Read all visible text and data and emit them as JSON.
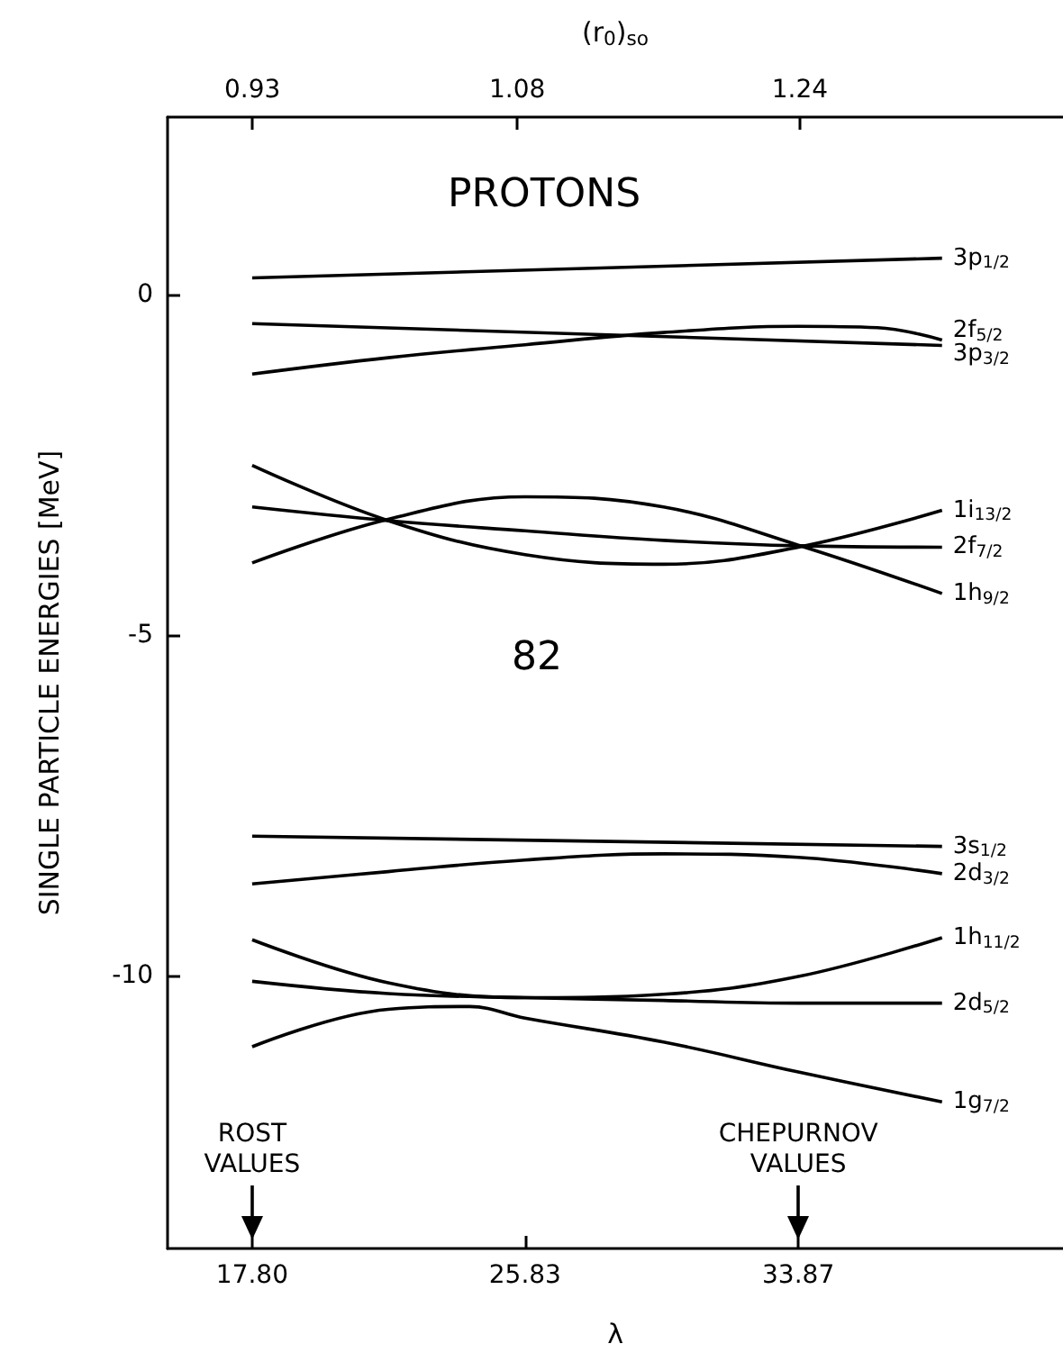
{
  "chart_data": {
    "type": "line",
    "title": "PROTONS",
    "xlabel": "λ",
    "x2label": "(r$_{0}$)$_{so}$",
    "ylabel": "SINGLE PARTICLE ENERGIES [MeV]",
    "xlim": [
      15.31,
      41.66
    ],
    "xticks": [
      {
        "value": 17.8,
        "label": "17.80"
      },
      25.83,
      33.87
    ],
    "x2lim": [
      0.882,
      1.389
    ],
    "x2ticks": [
      0.93,
      1.08,
      1.24
    ],
    "ylim": [
      -14,
      2.6
    ],
    "yticks": [
      0,
      -5,
      -10
    ],
    "grid": false,
    "annotations": [
      "82",
      "ROST\nVALUES",
      "CHEPURNOV\nVALUES"
    ],
    "series": [
      {
        "name": "3p$_{1/2}$",
        "color": "#000000",
        "x": [
          17.8,
          38.1
        ],
        "values": [
          0.24,
          0.53
        ]
      },
      {
        "name": "2f$_{5/2}$",
        "color": "#000000",
        "x": [
          17.8,
          21.8,
          25.83,
          29.9,
          33.87,
          36.2,
          38.1
        ],
        "values": [
          -1.17,
          -0.93,
          -0.74,
          -0.56,
          -0.47,
          -0.49,
          -0.67
        ]
      },
      {
        "name": "3p$_{3/2}$",
        "color": "#000000",
        "x": [
          17.8,
          38.1
        ],
        "values": [
          -0.43,
          -0.75
        ]
      },
      {
        "name": "1i$_{13/2}$",
        "color": "#000000",
        "x": [
          17.8,
          21.8,
          25.83,
          29.9,
          33.87,
          38.1
        ],
        "values": [
          -2.51,
          -3.32,
          -3.82,
          -3.96,
          -3.71,
          -3.17
        ]
      },
      {
        "name": "2f$_{7/2}$",
        "color": "#000000",
        "x": [
          17.8,
          21.8,
          25.83,
          29.9,
          33.87,
          38.1
        ],
        "values": [
          -3.12,
          -3.32,
          -3.47,
          -3.61,
          -3.69,
          -3.71
        ]
      },
      {
        "name": "1h$_{9/2}$",
        "color": "#000000",
        "x": [
          17.8,
          21.8,
          25.83,
          29.9,
          33.87,
          38.1
        ],
        "values": [
          -3.94,
          -3.3,
          -2.97,
          -3.12,
          -3.68,
          -4.39
        ]
      },
      {
        "name": "3s$_{1/2}$",
        "color": "#000000",
        "x": [
          17.8,
          38.1
        ],
        "values": [
          -7.95,
          -8.1
        ]
      },
      {
        "name": "2d$_{3/2}$",
        "color": "#000000",
        "x": [
          17.8,
          21.8,
          25.83,
          29.9,
          33.87,
          38.1
        ],
        "values": [
          -8.65,
          -8.47,
          -8.3,
          -8.21,
          -8.26,
          -8.5
        ]
      },
      {
        "name": "1h$_{11/2}$",
        "color": "#000000",
        "x": [
          17.8,
          21.8,
          25.83,
          29.9,
          33.87,
          38.1
        ],
        "values": [
          -9.47,
          -10.1,
          -10.32,
          -10.27,
          -10.01,
          -9.44
        ]
      },
      {
        "name": "2d$_{5/2}$",
        "color": "#000000",
        "x": [
          17.8,
          21.8,
          25.83,
          29.9,
          33.87,
          38.1
        ],
        "values": [
          -10.08,
          -10.26,
          -10.32,
          -10.36,
          -10.4,
          -10.4
        ]
      },
      {
        "name": "1g$_{7/2}$",
        "color": "#000000",
        "x": [
          17.8,
          21.8,
          24.2,
          25.83,
          29.9,
          33.87,
          38.1
        ],
        "values": [
          -11.04,
          -10.49,
          -10.45,
          -10.62,
          -10.97,
          -11.41,
          -11.85
        ]
      }
    ]
  }
}
